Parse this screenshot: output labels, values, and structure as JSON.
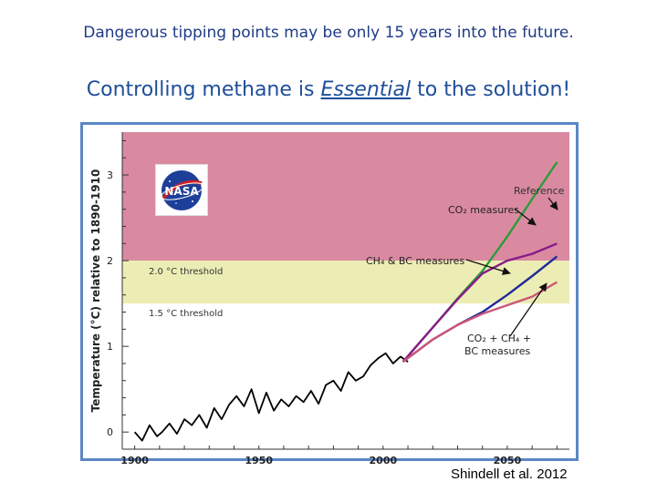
{
  "slide": {
    "top_line": "Dangerous tipping points may be only 15 years into the future.",
    "headline_pre": "Controlling methane is ",
    "headline_emph": "Essential",
    "headline_post": " to the solution!",
    "citation": "Shindell et al. 2012"
  },
  "logo": {
    "name": "nasa-logo",
    "text": "NASA"
  },
  "colors": {
    "danger_zone": "#d98aa0",
    "caution_zone": "#ecedb4",
    "reference": "#2e9a3a",
    "co2_measures": "#8a1a8a",
    "ch4_bc_measures": "#1f2a9a",
    "combined_measures": "#cc5577",
    "observed": "#000000"
  },
  "chart_data": {
    "type": "line",
    "xlabel": "",
    "ylabel": "Temperature (°C) relative to 1890-1910",
    "xlim": [
      1895,
      2075
    ],
    "ylim": [
      -0.2,
      3.5
    ],
    "x_ticks": [
      1900,
      1950,
      2000,
      2050
    ],
    "y_ticks": [
      0,
      1,
      2,
      3
    ],
    "bands": [
      {
        "name": "above-2C",
        "from": 2.0,
        "to": 3.5,
        "color": "#d98aa0"
      },
      {
        "name": "1.5-2C",
        "from": 1.5,
        "to": 2.0,
        "color": "#ecedb4"
      }
    ],
    "thresholds": [
      {
        "y": 2.0,
        "label": "2.0 °C threshold"
      },
      {
        "y": 1.5,
        "label": "1.5 °C threshold"
      }
    ],
    "observed": {
      "x": [
        1900,
        1903,
        1906,
        1909,
        1911,
        1914,
        1917,
        1920,
        1923,
        1926,
        1929,
        1932,
        1935,
        1938,
        1941,
        1944,
        1947,
        1950,
        1953,
        1956,
        1959,
        1962,
        1965,
        1968,
        1971,
        1974,
        1977,
        1980,
        1983,
        1986,
        1989,
        1992,
        1995,
        1998,
        2001,
        2004,
        2007,
        2010
      ],
      "values": [
        0.0,
        -0.1,
        0.08,
        -0.05,
        0.0,
        0.1,
        -0.02,
        0.15,
        0.08,
        0.2,
        0.05,
        0.28,
        0.15,
        0.32,
        0.42,
        0.3,
        0.5,
        0.22,
        0.46,
        0.25,
        0.38,
        0.3,
        0.42,
        0.35,
        0.48,
        0.33,
        0.55,
        0.6,
        0.48,
        0.7,
        0.6,
        0.65,
        0.78,
        0.86,
        0.92,
        0.8,
        0.88,
        0.82
      ]
    },
    "series": [
      {
        "name": "Reference",
        "x": [
          2008,
          2020,
          2030,
          2040,
          2050,
          2060,
          2070
        ],
        "values": [
          0.82,
          1.22,
          1.56,
          1.88,
          2.28,
          2.72,
          3.15
        ]
      },
      {
        "name": "CO2 measures",
        "x": [
          2008,
          2020,
          2030,
          2040,
          2050,
          2060,
          2070
        ],
        "values": [
          0.82,
          1.22,
          1.55,
          1.85,
          2.0,
          2.08,
          2.2
        ]
      },
      {
        "name": "CH4 & BC measures",
        "x": [
          2008,
          2020,
          2030,
          2040,
          2050,
          2060,
          2070
        ],
        "values": [
          0.82,
          1.08,
          1.25,
          1.4,
          1.6,
          1.82,
          2.05
        ]
      },
      {
        "name": "CO2 + CH4 + BC measures",
        "x": [
          2008,
          2020,
          2030,
          2040,
          2050,
          2060,
          2070
        ],
        "values": [
          0.82,
          1.08,
          1.25,
          1.38,
          1.48,
          1.58,
          1.75
        ]
      }
    ],
    "annotations": {
      "reference": "Reference",
      "co2": "CO₂ measures",
      "ch4bc": "CH₄ & BC measures",
      "combined_line1": "CO₂ + CH₄ +",
      "combined_line2": "BC measures"
    }
  }
}
